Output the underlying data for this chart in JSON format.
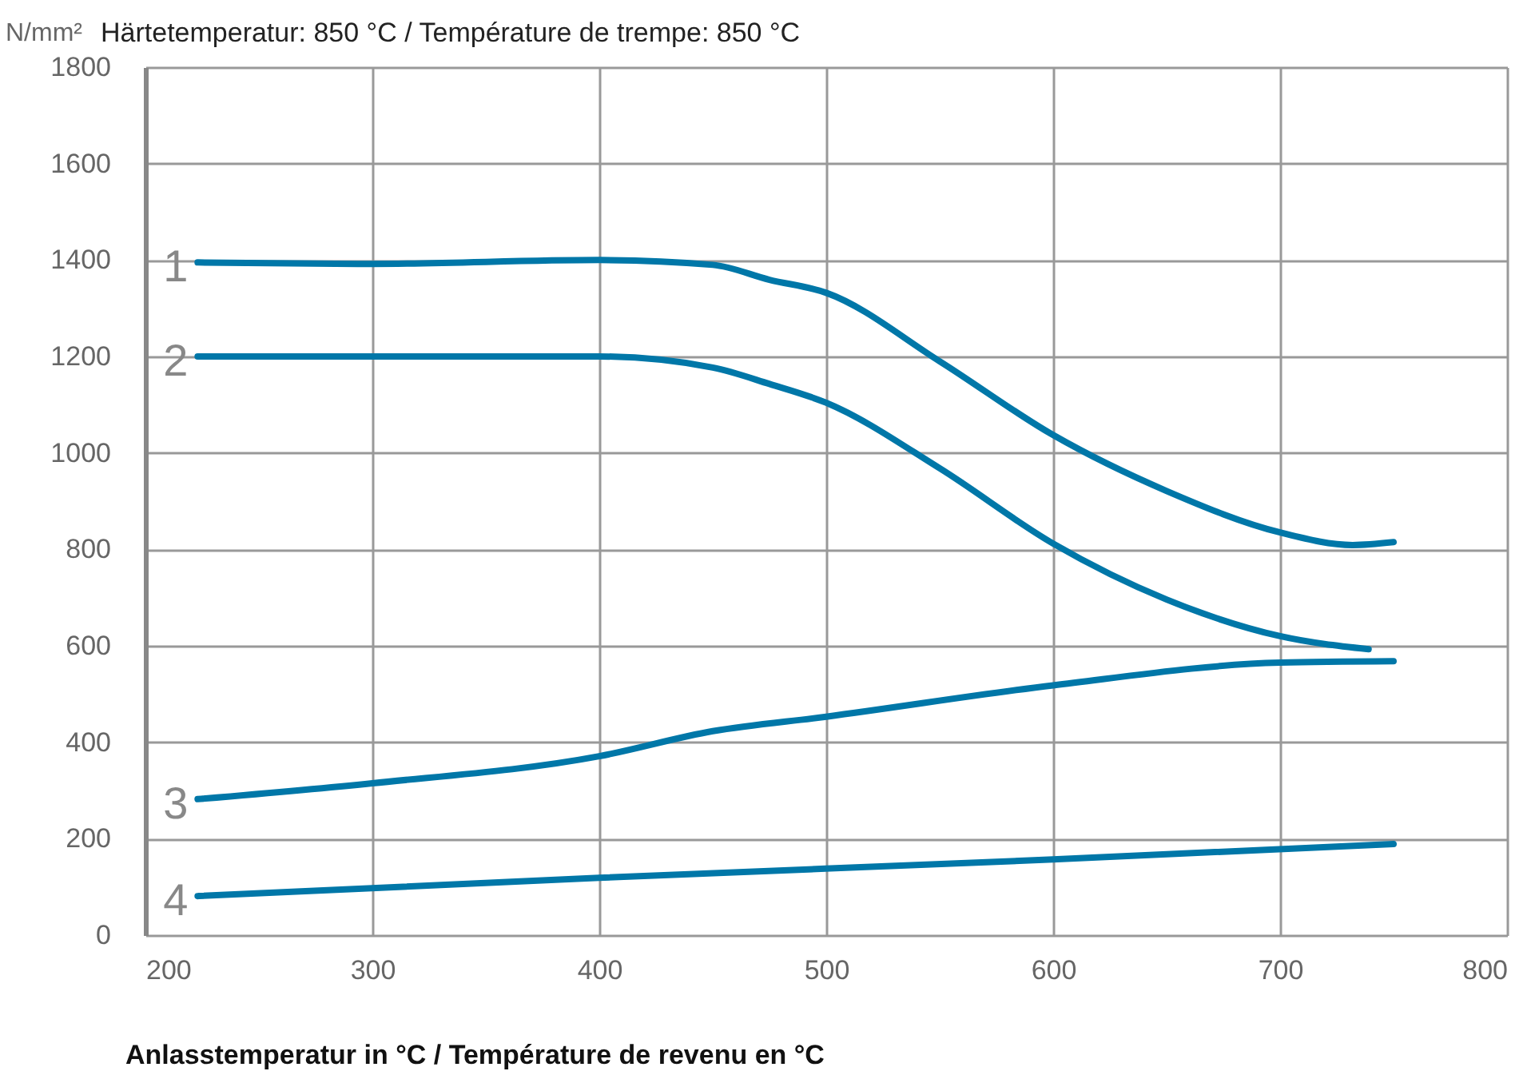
{
  "chart_data": {
    "type": "line",
    "title": "Härtetemperatur: 850 °C / Température de trempe: 850 °C",
    "xlabel": "Anlasstemperatur in °C / Température de revenu en °C",
    "ylabel": "N/mm²",
    "xlim": [
      200,
      800
    ],
    "xticks": [
      200,
      300,
      400,
      500,
      600,
      700,
      800
    ],
    "ylim": [
      0,
      1800
    ],
    "yticks": [
      0,
      200,
      400,
      600,
      800,
      1000,
      1200,
      1400,
      1600,
      1800
    ],
    "grid": true,
    "legend": false,
    "series": [
      {
        "name": "1",
        "color": "#0077a8",
        "x": [
          223,
          300,
          400,
          450,
          475,
          500,
          550,
          600,
          650,
          700,
          732,
          750
        ],
        "values": [
          1395,
          1392,
          1400,
          1390,
          1359,
          1332,
          1190,
          1037,
          921,
          835,
          809,
          815
        ]
      },
      {
        "name": "2",
        "color": "#0077a8",
        "x": [
          223,
          300,
          400,
          450,
          475,
          500,
          550,
          600,
          650,
          700,
          739
        ],
        "values": [
          1200,
          1200,
          1200,
          1177,
          1143,
          1104,
          968,
          812,
          696,
          620,
          593
        ]
      },
      {
        "name": "3",
        "color": "#0077a8",
        "x": [
          223,
          300,
          400,
          450,
          500,
          600,
          700,
          750
        ],
        "values": [
          282,
          315,
          371,
          423,
          453,
          518,
          565,
          568
        ]
      },
      {
        "name": "4",
        "color": "#0077a8",
        "x": [
          223,
          400,
          600,
          750
        ],
        "values": [
          81,
          119,
          157,
          189
        ]
      }
    ]
  }
}
